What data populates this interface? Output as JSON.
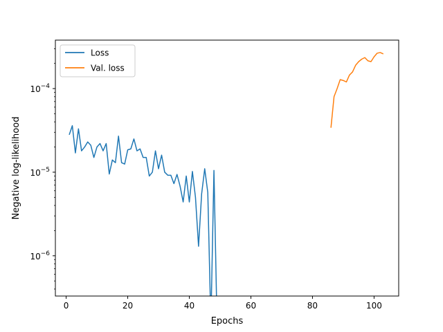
{
  "chart_data": {
    "type": "line",
    "xlabel": "Epochs",
    "ylabel": "Negative log-likelihood",
    "yscale": "log",
    "xlim": [
      -3.5,
      108
    ],
    "ylim": [
      3.3e-07,
      0.00038
    ],
    "x_ticks": [
      0,
      20,
      40,
      60,
      80,
      100
    ],
    "y_ticks": [
      {
        "value": 1e-06,
        "mantissa": "10",
        "exp": "−6"
      },
      {
        "value": 1e-05,
        "mantissa": "10",
        "exp": "−5"
      },
      {
        "value": 0.0001,
        "mantissa": "10",
        "exp": "−4"
      }
    ],
    "legend_position": "top-left",
    "grid": false,
    "series": [
      {
        "name": "Loss",
        "color": "#1f77b4",
        "x": [
          1,
          2,
          3,
          4,
          5,
          6,
          7,
          8,
          9,
          10,
          11,
          12,
          13,
          14,
          15,
          16,
          17,
          18,
          19,
          20,
          21,
          22,
          23,
          24,
          25,
          26,
          27,
          28,
          29,
          30,
          31,
          32,
          33,
          34,
          35,
          36,
          37,
          38,
          39,
          40,
          41,
          42,
          43,
          44,
          45,
          46,
          47,
          48,
          49
        ],
        "y": [
          2.8e-05,
          3.6e-05,
          1.7e-05,
          3.3e-05,
          1.8e-05,
          2e-05,
          2.3e-05,
          2.1e-05,
          1.5e-05,
          2e-05,
          2.2e-05,
          1.8e-05,
          2.2e-05,
          9.5e-06,
          1.4e-05,
          1.3e-05,
          2.7e-05,
          1.3e-05,
          1.25e-05,
          1.85e-05,
          1.9e-05,
          2.5e-05,
          1.8e-05,
          1.9e-05,
          1.5e-05,
          1.5e-05,
          9e-06,
          1e-05,
          1.8e-05,
          1.1e-05,
          1.6e-05,
          1e-05,
          9.2e-06,
          9.2e-06,
          7.3e-06,
          9.4e-06,
          6.8e-06,
          4.4e-06,
          9e-06,
          4.4e-06,
          1.02e-05,
          5e-06,
          1.3e-06,
          5.5e-06,
          1.1e-05,
          5.7e-06,
          null,
          1.05e-05,
          null
        ],
        "drops_below_axis_at": [
          46,
          49
        ]
      },
      {
        "name": "Val. loss",
        "color": "#ff7f0e",
        "x": [
          86,
          87,
          88,
          89,
          90,
          91,
          92,
          93,
          94,
          95,
          96,
          97,
          98,
          99,
          100,
          101,
          102,
          103
        ],
        "y": [
          3.4e-05,
          8e-05,
          0.0001,
          0.000128,
          0.000125,
          0.00012,
          0.000145,
          0.000158,
          0.00019,
          0.00021,
          0.000225,
          0.000235,
          0.000215,
          0.00021,
          0.00024,
          0.000265,
          0.00027,
          0.00026
        ],
        "drops_below_axis_at": [
          86
        ]
      }
    ]
  }
}
